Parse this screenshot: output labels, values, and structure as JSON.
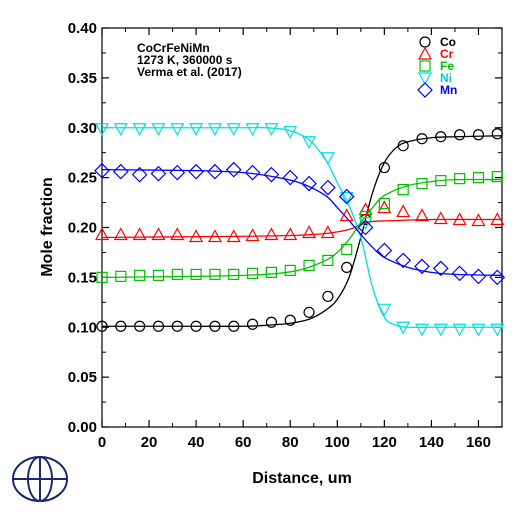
{
  "chart_data": {
    "type": "line",
    "xlabel": "Distance, um",
    "ylabel": "Mole fraction",
    "xlim": [
      0,
      170
    ],
    "ylim": [
      0,
      0.4
    ],
    "x_ticks": [
      "0",
      "20",
      "40",
      "60",
      "80",
      "100",
      "120",
      "140",
      "160"
    ],
    "y_ticks": [
      "0.00",
      "0.05",
      "0.10",
      "0.15",
      "0.20",
      "0.25",
      "0.30",
      "0.35",
      "0.40"
    ],
    "annotations": [
      "CoCrFeNiMn",
      "1273 K, 360000 s",
      "Verma et al. (2017)"
    ],
    "legend_position": "top-right",
    "grid": false,
    "series": [
      {
        "name": "Co",
        "color": "#000000",
        "marker": "circle",
        "x": [
          0,
          8,
          16,
          24,
          32,
          40,
          48,
          56,
          64,
          72,
          80,
          88,
          96,
          104,
          112,
          120,
          128,
          136,
          144,
          152,
          160,
          168
        ],
        "y": [
          0.101,
          0.101,
          0.101,
          0.101,
          0.101,
          0.101,
          0.101,
          0.101,
          0.103,
          0.105,
          0.107,
          0.115,
          0.131,
          0.16,
          0.208,
          0.26,
          0.282,
          0.289,
          0.291,
          0.293,
          0.293,
          0.294
        ],
        "line_x": [
          0,
          40,
          60,
          70,
          80,
          88,
          95,
          100,
          105,
          110,
          115,
          120,
          125,
          130,
          140,
          150,
          170
        ],
        "line_y": [
          0.101,
          0.101,
          0.101,
          0.102,
          0.104,
          0.108,
          0.117,
          0.128,
          0.15,
          0.19,
          0.235,
          0.265,
          0.28,
          0.286,
          0.29,
          0.291,
          0.292
        ]
      },
      {
        "name": "Cr",
        "color": "#ff0000",
        "marker": "triangle-up",
        "x": [
          0,
          8,
          16,
          24,
          32,
          40,
          48,
          56,
          64,
          72,
          80,
          88,
          96,
          104,
          112,
          120,
          128,
          136,
          144,
          152,
          160,
          168
        ],
        "y": [
          0.193,
          0.193,
          0.193,
          0.193,
          0.193,
          0.191,
          0.191,
          0.191,
          0.192,
          0.193,
          0.193,
          0.195,
          0.195,
          0.212,
          0.218,
          0.22,
          0.216,
          0.212,
          0.209,
          0.208,
          0.207,
          0.208
        ],
        "line_x": [
          0,
          50,
          80,
          95,
          105,
          110,
          115,
          125,
          140,
          170
        ],
        "line_y": [
          0.19,
          0.191,
          0.192,
          0.194,
          0.198,
          0.203,
          0.206,
          0.207,
          0.208,
          0.208
        ]
      },
      {
        "name": "Fe",
        "color": "#00c000",
        "marker": "square",
        "x": [
          0,
          8,
          16,
          24,
          32,
          40,
          48,
          56,
          64,
          72,
          80,
          88,
          96,
          104,
          112,
          120,
          128,
          136,
          144,
          152,
          160,
          168
        ],
        "y": [
          0.15,
          0.151,
          0.152,
          0.152,
          0.153,
          0.153,
          0.153,
          0.153,
          0.154,
          0.155,
          0.157,
          0.162,
          0.167,
          0.178,
          0.211,
          0.224,
          0.238,
          0.244,
          0.247,
          0.249,
          0.25,
          0.251
        ],
        "line_x": [
          0,
          40,
          60,
          75,
          85,
          95,
          100,
          105,
          110,
          115,
          120,
          130,
          140,
          150,
          170
        ],
        "line_y": [
          0.15,
          0.151,
          0.152,
          0.154,
          0.158,
          0.167,
          0.175,
          0.188,
          0.205,
          0.22,
          0.232,
          0.242,
          0.246,
          0.248,
          0.248
        ]
      },
      {
        "name": "Ni",
        "color": "#00e0e0",
        "marker": "triangle-down",
        "x": [
          0,
          8,
          16,
          24,
          32,
          40,
          48,
          56,
          64,
          72,
          80,
          88,
          96,
          104,
          112,
          120,
          128,
          136,
          144,
          152,
          160,
          168
        ],
        "y": [
          0.299,
          0.299,
          0.299,
          0.299,
          0.299,
          0.299,
          0.299,
          0.299,
          0.299,
          0.299,
          0.296,
          0.286,
          0.27,
          0.23,
          0.205,
          0.118,
          0.1,
          0.098,
          0.098,
          0.098,
          0.098,
          0.098
        ],
        "line_x": [
          0,
          40,
          60,
          70,
          80,
          88,
          95,
          100,
          105,
          110,
          115,
          120,
          125,
          130,
          140,
          170
        ],
        "line_y": [
          0.3,
          0.3,
          0.3,
          0.3,
          0.297,
          0.288,
          0.268,
          0.245,
          0.222,
          0.19,
          0.14,
          0.11,
          0.102,
          0.1,
          0.1,
          0.1
        ]
      },
      {
        "name": "Mn",
        "color": "#0000ff",
        "marker": "diamond",
        "x": [
          0,
          8,
          16,
          24,
          32,
          40,
          48,
          56,
          64,
          72,
          80,
          88,
          96,
          104,
          112,
          120,
          128,
          136,
          144,
          152,
          160,
          168
        ],
        "y": [
          0.257,
          0.256,
          0.253,
          0.254,
          0.255,
          0.256,
          0.256,
          0.258,
          0.255,
          0.253,
          0.25,
          0.244,
          0.24,
          0.231,
          0.2,
          0.177,
          0.167,
          0.161,
          0.159,
          0.154,
          0.151,
          0.15
        ],
        "line_x": [
          0,
          40,
          60,
          75,
          85,
          95,
          100,
          105,
          110,
          115,
          120,
          130,
          140,
          150,
          170
        ],
        "line_y": [
          0.258,
          0.257,
          0.255,
          0.25,
          0.244,
          0.232,
          0.22,
          0.207,
          0.193,
          0.18,
          0.17,
          0.16,
          0.155,
          0.153,
          0.152
        ]
      }
    ]
  }
}
